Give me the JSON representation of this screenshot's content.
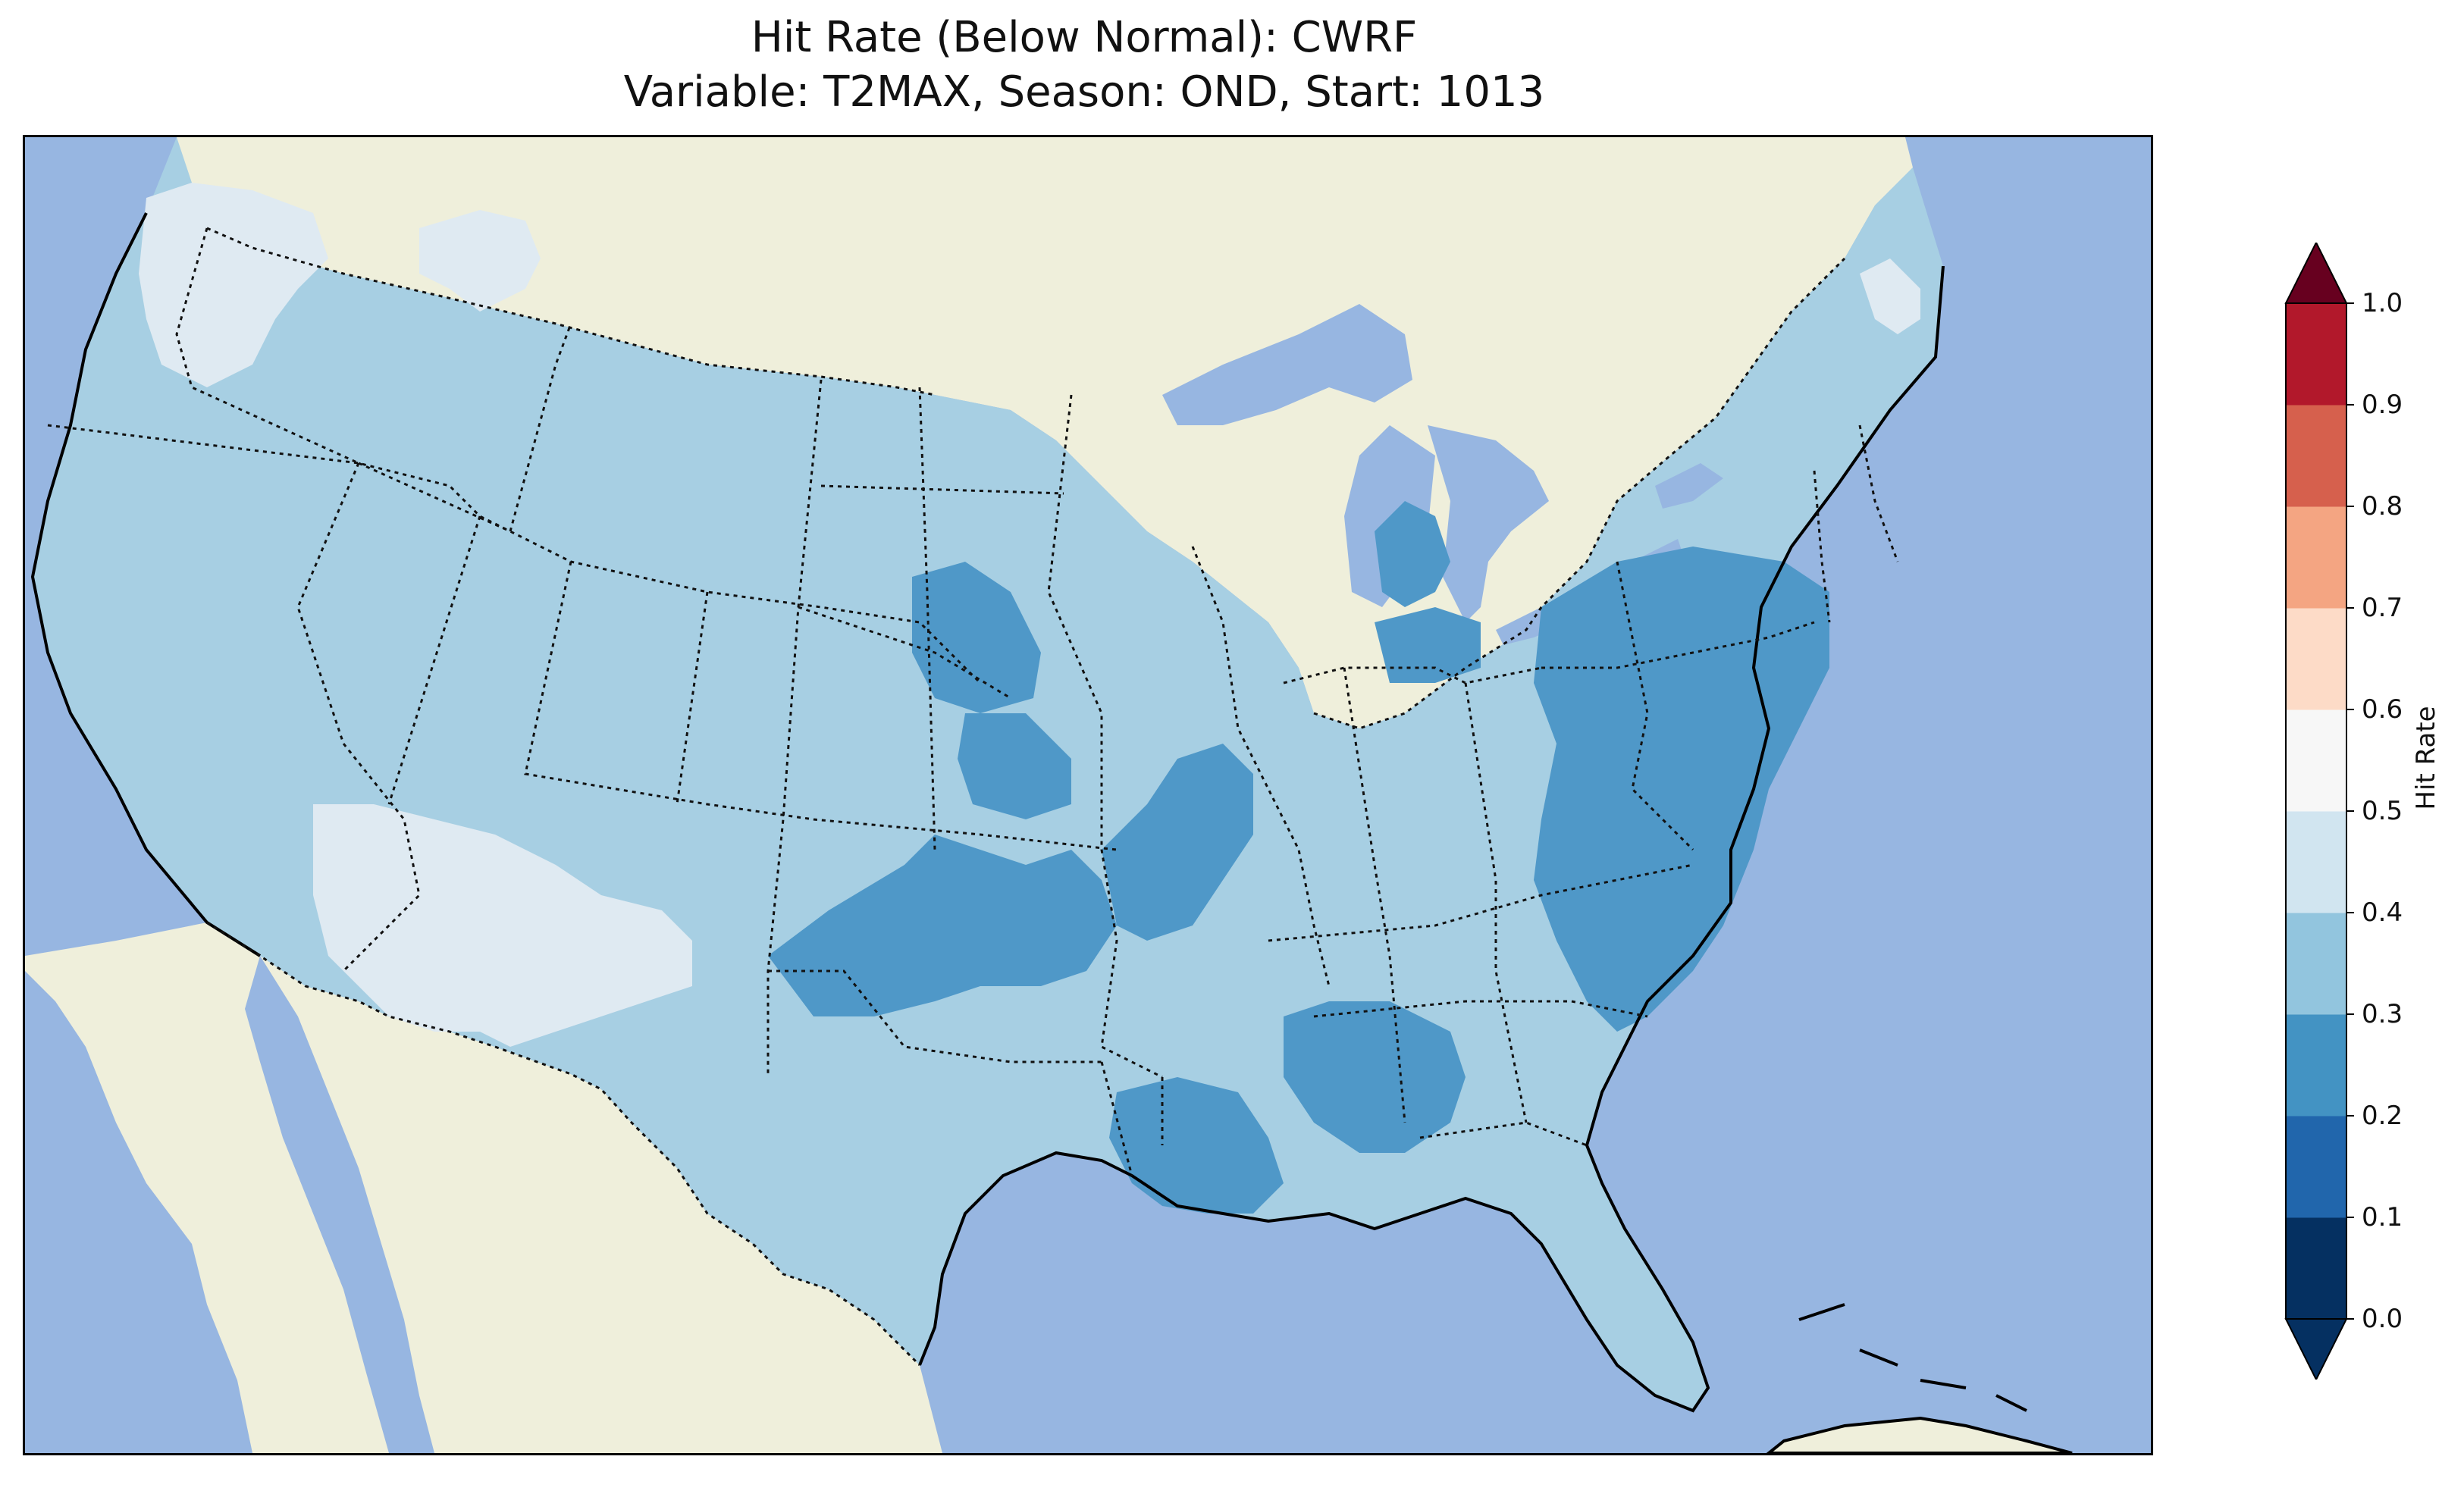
{
  "title": {
    "line1": "Hit Rate (Below Normal): CWRF",
    "line2": "Variable: T2MAX, Season: OND, Start: 1013"
  },
  "colorbar": {
    "label": "Hit Rate",
    "ticks": [
      "0.0",
      "0.1",
      "0.2",
      "0.3",
      "0.4",
      "0.5",
      "0.6",
      "0.7",
      "0.8",
      "0.9",
      "1.0"
    ],
    "colors": [
      "#053061",
      "#2166ac",
      "#4393c3",
      "#92c5de",
      "#d1e5f0",
      "#f7f7f7",
      "#fddbc7",
      "#f4a582",
      "#d6604d",
      "#b2182b",
      "#67001f"
    ],
    "under_color": "#053061",
    "over_color": "#67001f",
    "extend": "both"
  },
  "map": {
    "ocean_color": "#97b6e1",
    "land_color": "#efefdb",
    "dominant_bin": "0.3-0.4",
    "low_bin": "0.2-0.3",
    "high_bin": "0.4-0.5",
    "low_bin_color": "#4f98c8",
    "mid_bin_color": "#a7cfe3",
    "high_bin_color": "#dfeaf2"
  }
}
